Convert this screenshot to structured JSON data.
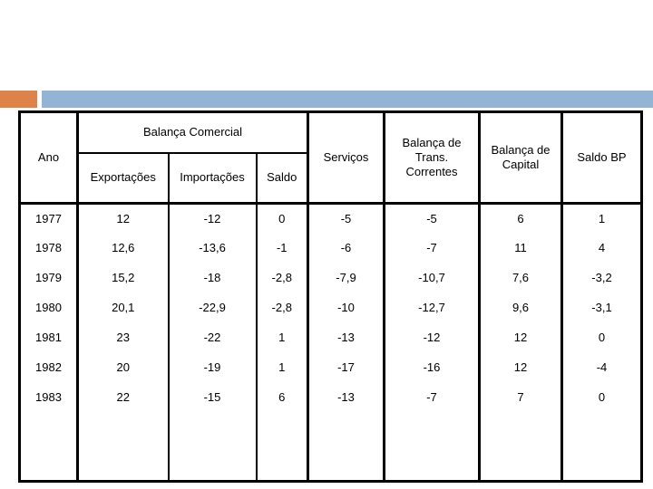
{
  "slide": {
    "accent_bar": {
      "orange_color": "#dd8248",
      "blue_color": "#94b4d5"
    }
  },
  "table": {
    "header": {
      "ano": "Ano",
      "balanca_comercial": "Balança Comercial",
      "exportacoes": "Exportações",
      "importacoes": "Importações",
      "saldo": "Saldo",
      "servicos": "Serviços",
      "trans_correntes": "Balança de\nTrans.\nCorrentes",
      "capital": "Balança de\nCapital",
      "saldo_bp": "Saldo BP"
    },
    "rows": [
      [
        "1977",
        "12",
        "-12",
        "0",
        "-5",
        "-5",
        "6",
        "1"
      ],
      [
        "1978",
        "12,6",
        "-13,6",
        "-1",
        "-6",
        "-7",
        "11",
        "4"
      ],
      [
        "1979",
        "15,2",
        "-18",
        "-2,8",
        "-7,9",
        "-10,7",
        "7,6",
        "-3,2"
      ],
      [
        "1980",
        "20,1",
        "-22,9",
        "-2,8",
        "-10",
        "-12,7",
        "9,6",
        "-3,1"
      ],
      [
        "1981",
        "23",
        "-22",
        "1",
        "-13",
        "-12",
        "12",
        "0"
      ],
      [
        "1982",
        "20",
        "-19",
        "1",
        "-17",
        "-16",
        "12",
        "-4"
      ],
      [
        "1983",
        "22",
        "-15",
        "6",
        "-13",
        "-7",
        "7",
        "0"
      ]
    ]
  }
}
